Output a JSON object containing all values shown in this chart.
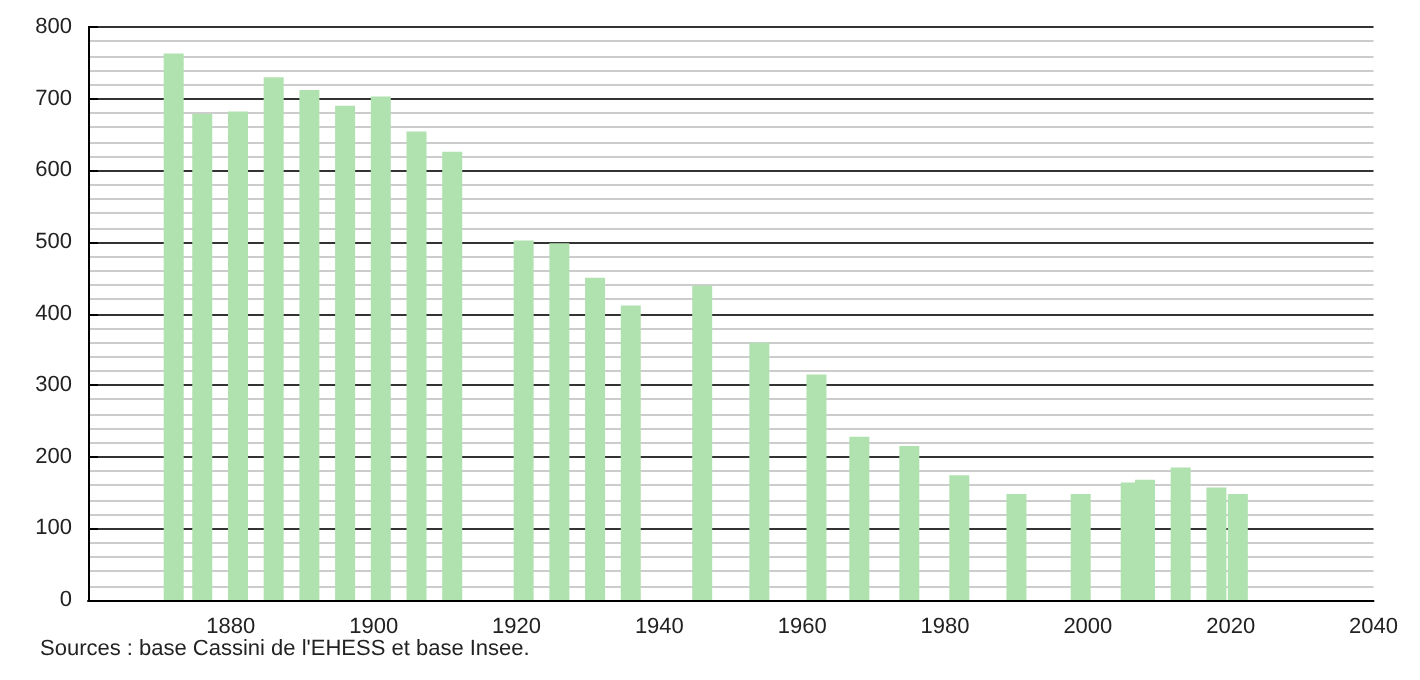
{
  "chart_data": {
    "type": "bar",
    "x": [
      1872,
      1876,
      1881,
      1886,
      1891,
      1896,
      1901,
      1906,
      1911,
      1921,
      1926,
      1931,
      1936,
      1946,
      1954,
      1962,
      1968,
      1975,
      1982,
      1990,
      1999,
      2006,
      2008,
      2013,
      2018,
      2021
    ],
    "values": [
      763,
      679,
      682,
      730,
      712,
      690,
      703,
      654,
      626,
      502,
      498,
      450,
      411,
      439,
      359,
      315,
      228,
      215,
      174,
      148,
      148,
      164,
      168,
      185,
      157,
      148
    ],
    "color": "#b0e2b0",
    "xlim": [
      1860,
      2040
    ],
    "xticks": [
      1880,
      1900,
      1920,
      1940,
      1960,
      1980,
      2000,
      2020,
      2040
    ],
    "ylim": [
      0,
      800
    ],
    "yticks": [
      0,
      100,
      200,
      300,
      400,
      500,
      600,
      700,
      800
    ],
    "grid": "y",
    "annotations": [
      "Sources : base Cassini de l'EHESS et base Insee."
    ]
  }
}
